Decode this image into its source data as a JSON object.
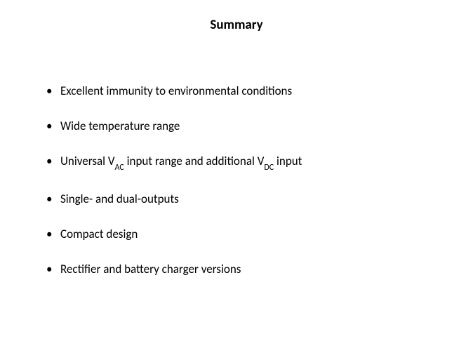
{
  "slide": {
    "title": "Summary",
    "title_fontsize": 19,
    "title_fontweight": "bold",
    "background_color": "#ffffff",
    "text_color": "#000000",
    "bullets": [
      {
        "text": "Excellent immunity to environmental conditions",
        "has_subscript": false
      },
      {
        "text": "Wide temperature range",
        "has_subscript": false
      },
      {
        "prefix": "Universal V",
        "sub1": "AC",
        "mid": " input range and additional V",
        "sub2": "DC",
        "suffix": " input",
        "has_subscript": true
      },
      {
        "text": "Single- and dual-outputs",
        "has_subscript": false
      },
      {
        "text": "Compact design",
        "has_subscript": false
      },
      {
        "text": "Rectifier and battery charger versions",
        "has_subscript": false
      }
    ],
    "bullet_fontsize": 17,
    "bullet_spacing": 28,
    "subscript_fontsize": 12
  }
}
